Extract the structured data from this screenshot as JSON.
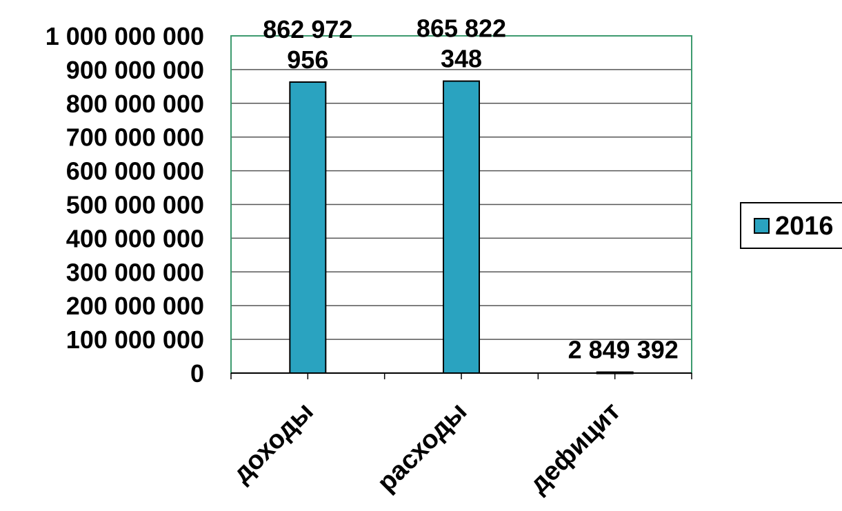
{
  "chart_data": {
    "type": "bar",
    "categories": [
      "доходы",
      "расходы",
      "дефицит"
    ],
    "series": [
      {
        "name": "2016",
        "values": [
          862972956,
          865822348,
          2849392
        ],
        "color": "#2aa3c0"
      }
    ],
    "data_labels": [
      [
        "862 972",
        "956"
      ],
      [
        "865 822",
        "348"
      ],
      [
        "2 849 392"
      ]
    ],
    "y_ticks": [
      "0",
      "100 000 000",
      "200 000 000",
      "300 000 000",
      "400 000 000",
      "500 000 000",
      "600 000 000",
      "700 000 000",
      "800 000 000",
      "900 000 000",
      "1 000 000 000"
    ],
    "ylim": [
      0,
      1000000000
    ],
    "y_step": 100000000,
    "grid": true,
    "legend_position": "right",
    "plot_border_color": "#3c9a6e",
    "title": "",
    "xlabel": "",
    "ylabel": ""
  }
}
